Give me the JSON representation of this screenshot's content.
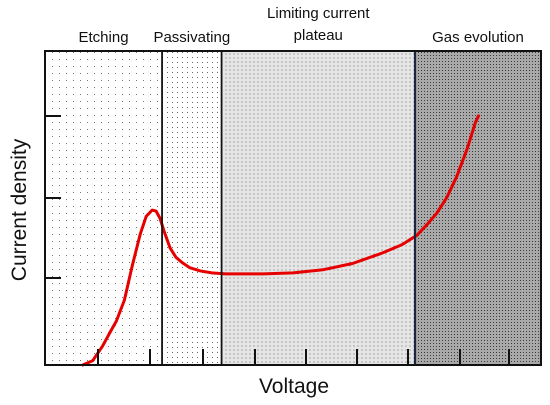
{
  "chart_data": {
    "type": "line",
    "title": "",
    "xlabel": "Voltage",
    "ylabel": "Current density",
    "xlim": [
      0,
      500
    ],
    "ylim": [
      0,
      300
    ],
    "grid": false,
    "regions": [
      {
        "label": [
          "Etching"
        ],
        "x_start": 0,
        "x_end": 118,
        "shade": "sparse"
      },
      {
        "label": [
          "Passivating"
        ],
        "x_start": 118,
        "x_end": 178,
        "shade": "light"
      },
      {
        "label": [
          "Limiting current",
          "plateau"
        ],
        "x_start": 178,
        "x_end": 373,
        "shade": "medium"
      },
      {
        "label": [
          "Gas evolution"
        ],
        "x_start": 373,
        "x_end": 500,
        "shade": "dense"
      }
    ],
    "series": [
      {
        "color": "#e60000",
        "x": [
          38,
          48,
          58,
          66,
          72,
          80,
          88,
          96,
          102,
          108,
          112,
          116,
          120,
          126,
          132,
          138,
          146,
          156,
          168,
          182,
          200,
          220,
          250,
          280,
          310,
          340,
          360,
          375,
          385,
          395,
          405,
          415,
          425,
          430,
          434,
          437
        ],
        "y": [
          0,
          4,
          18,
          32,
          42,
          62,
          95,
          125,
          142,
          148,
          147,
          140,
          128,
          112,
          103,
          98,
          93,
          90,
          88,
          87,
          87,
          87,
          88,
          91,
          97,
          107,
          115,
          124,
          134,
          145,
          160,
          180,
          205,
          220,
          232,
          238
        ]
      }
    ]
  }
}
